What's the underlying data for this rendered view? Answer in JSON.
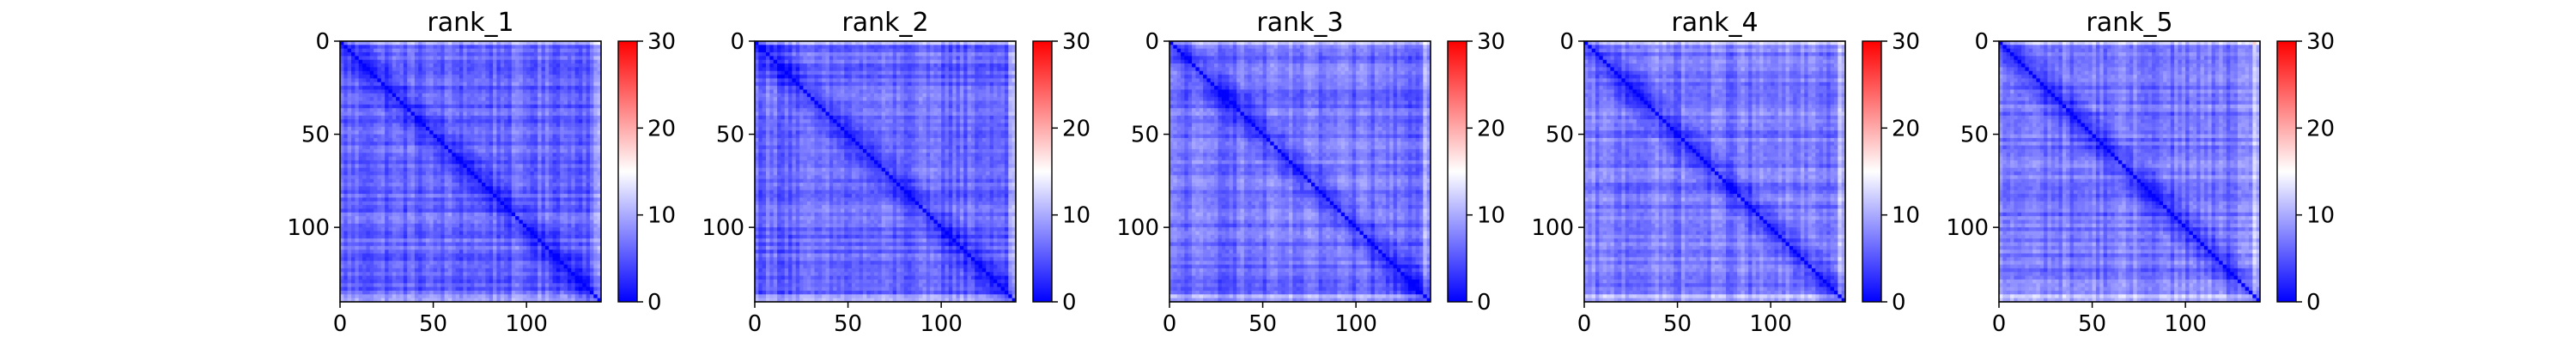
{
  "colormap": {
    "name": "bwr",
    "low": "#0000ff",
    "mid": "#ffffff",
    "high": "#ff0000"
  },
  "chart_data": [
    {
      "type": "heatmap",
      "title": "rank_1",
      "matrix_size": 140,
      "x_ticks": [
        "0",
        "50",
        "100"
      ],
      "x_tick_values": [
        0,
        50,
        100
      ],
      "y_ticks": [
        "0",
        "50",
        "100"
      ],
      "y_tick_values": [
        0,
        50,
        100
      ],
      "colorbar": {
        "vmin": 0,
        "vmax": 30,
        "ticks": [
          "0",
          "10",
          "20",
          "30"
        ],
        "tick_values": [
          0,
          10,
          20,
          30
        ]
      },
      "typical_offdiagonal_value": 6,
      "diagonal_value": 0
    },
    {
      "type": "heatmap",
      "title": "rank_2",
      "matrix_size": 140,
      "x_ticks": [
        "0",
        "50",
        "100"
      ],
      "x_tick_values": [
        0,
        50,
        100
      ],
      "y_ticks": [
        "0",
        "50",
        "100"
      ],
      "y_tick_values": [
        0,
        50,
        100
      ],
      "colorbar": {
        "vmin": 0,
        "vmax": 30,
        "ticks": [
          "0",
          "10",
          "20",
          "30"
        ],
        "tick_values": [
          0,
          10,
          20,
          30
        ]
      },
      "typical_offdiagonal_value": 6,
      "diagonal_value": 0
    },
    {
      "type": "heatmap",
      "title": "rank_3",
      "matrix_size": 140,
      "x_ticks": [
        "0",
        "50",
        "100"
      ],
      "x_tick_values": [
        0,
        50,
        100
      ],
      "y_ticks": [
        "0",
        "50",
        "100"
      ],
      "y_tick_values": [
        0,
        50,
        100
      ],
      "colorbar": {
        "vmin": 0,
        "vmax": 30,
        "ticks": [
          "0",
          "10",
          "20",
          "30"
        ],
        "tick_values": [
          0,
          10,
          20,
          30
        ]
      },
      "typical_offdiagonal_value": 6.5,
      "diagonal_value": 0
    },
    {
      "type": "heatmap",
      "title": "rank_4",
      "matrix_size": 140,
      "x_ticks": [
        "0",
        "50",
        "100"
      ],
      "x_tick_values": [
        0,
        50,
        100
      ],
      "y_ticks": [
        "0",
        "50",
        "100"
      ],
      "y_tick_values": [
        0,
        50,
        100
      ],
      "colorbar": {
        "vmin": 0,
        "vmax": 30,
        "ticks": [
          "0",
          "10",
          "20",
          "30"
        ],
        "tick_values": [
          0,
          10,
          20,
          30
        ]
      },
      "typical_offdiagonal_value": 7,
      "diagonal_value": 0
    },
    {
      "type": "heatmap",
      "title": "rank_5",
      "matrix_size": 140,
      "x_ticks": [
        "0",
        "50",
        "100"
      ],
      "x_tick_values": [
        0,
        50,
        100
      ],
      "y_ticks": [
        "0",
        "50",
        "100"
      ],
      "y_tick_values": [
        0,
        50,
        100
      ],
      "colorbar": {
        "vmin": 0,
        "vmax": 30,
        "ticks": [
          "0",
          "10",
          "20",
          "30"
        ],
        "tick_values": [
          0,
          10,
          20,
          30
        ]
      },
      "typical_offdiagonal_value": 7,
      "diagonal_value": 0
    }
  ]
}
